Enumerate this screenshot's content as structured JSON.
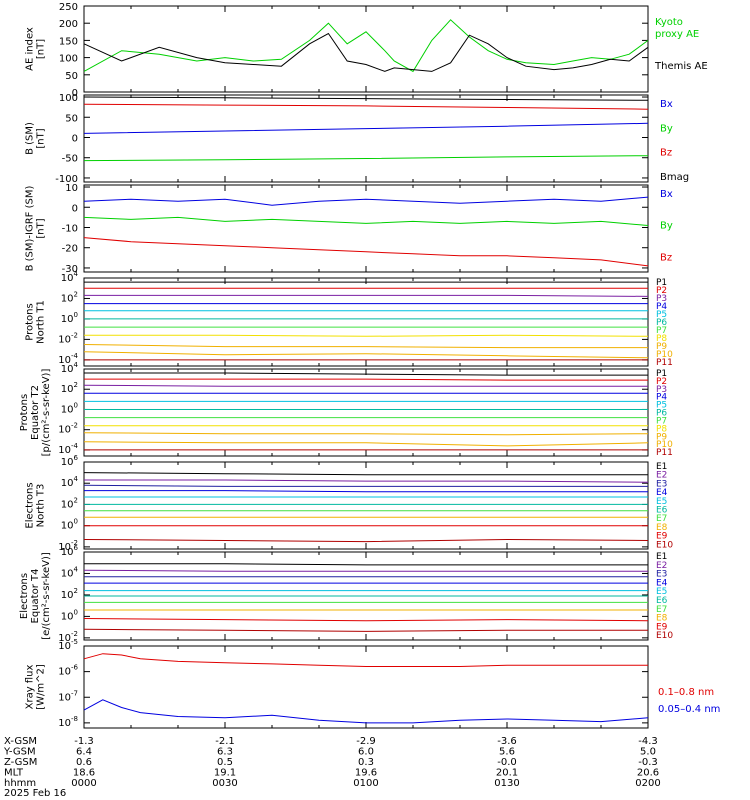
{
  "colors": {
    "black": "#000000",
    "red": "#e00000",
    "blue": "#0000e0",
    "green": "#00d000",
    "purple": "#7a1fa2",
    "cyan": "#00c0e0",
    "teal": "#00b8a0",
    "lgreen": "#40e040",
    "yellow": "#f2e000",
    "orange": "#f0b000",
    "darkred": "#b00000",
    "navy": "#2020a0",
    "lime": "#60d000"
  },
  "footer": {
    "rows": [
      {
        "label": "X-GSM",
        "values": [
          "-1.3",
          "-2.1",
          "-2.9",
          "-3.6",
          "-4.3"
        ]
      },
      {
        "label": "Y-GSM",
        "values": [
          "6.4",
          "6.3",
          "6.0",
          "5.6",
          "5.0"
        ]
      },
      {
        "label": "Z-GSM",
        "values": [
          "0.6",
          "0.5",
          "0.3",
          "-0.0",
          "-0.3"
        ]
      },
      {
        "label": "MLT",
        "values": [
          "18.6",
          "19.1",
          "19.6",
          "20.1",
          "20.6"
        ]
      },
      {
        "label": "hhmm",
        "values": [
          "0000",
          "0030",
          "0100",
          "0130",
          "0200"
        ]
      }
    ],
    "date": "2025 Feb 16"
  },
  "chart_data": [
    {
      "id": "ae",
      "type": "line",
      "ylabel": [
        "AE index",
        "[nT]"
      ],
      "ylim": [
        0,
        250
      ],
      "yticks": [
        0,
        50,
        100,
        150,
        200,
        250
      ],
      "scale": "linear",
      "x": [
        0,
        8,
        16,
        24,
        30,
        36,
        42,
        48,
        52,
        56,
        60,
        64,
        66,
        70,
        74,
        78,
        82,
        86,
        90,
        94,
        100,
        104,
        108,
        112,
        116,
        120
      ],
      "series": [
        {
          "name": "Kyoto proxy AE",
          "label_lines": [
            "Kyoto",
            "proxy AE"
          ],
          "color": "green",
          "values": [
            60,
            120,
            110,
            90,
            100,
            90,
            95,
            150,
            200,
            140,
            175,
            120,
            90,
            60,
            150,
            210,
            160,
            120,
            95,
            85,
            80,
            90,
            100,
            95,
            110,
            150
          ]
        },
        {
          "name": "Themis AE",
          "label_lines": [
            "Themis AE"
          ],
          "color": "black",
          "values": [
            140,
            90,
            130,
            100,
            85,
            80,
            75,
            140,
            170,
            90,
            80,
            60,
            70,
            65,
            60,
            85,
            165,
            140,
            100,
            75,
            65,
            70,
            80,
            95,
            90,
            130
          ]
        }
      ]
    },
    {
      "id": "bsm",
      "type": "line",
      "ylabel": [
        "B (SM)",
        "[nT]"
      ],
      "ylim": [
        -110,
        105
      ],
      "yticks": [
        -100,
        -50,
        0,
        50,
        100
      ],
      "scale": "linear",
      "x": [
        0,
        30,
        60,
        90,
        120
      ],
      "series": [
        {
          "name": "Bx",
          "color": "blue",
          "values": [
            10,
            16,
            22,
            28,
            35
          ]
        },
        {
          "name": "By",
          "color": "green",
          "values": [
            -57,
            -55,
            -52,
            -48,
            -45
          ]
        },
        {
          "name": "Bz",
          "color": "red",
          "values": [
            82,
            80,
            78,
            74,
            70
          ]
        },
        {
          "name": "Bmag",
          "color": "black",
          "values": [
            100,
            98,
            96,
            94,
            92
          ]
        }
      ]
    },
    {
      "id": "bigrf",
      "type": "line",
      "ylabel": [
        "B (SM)-IGRF (SM)",
        "[nT]"
      ],
      "ylim": [
        -32,
        11
      ],
      "yticks": [
        -30,
        -20,
        -10,
        0,
        10
      ],
      "scale": "linear",
      "x": [
        0,
        10,
        20,
        30,
        40,
        50,
        60,
        70,
        80,
        90,
        100,
        110,
        120
      ],
      "series": [
        {
          "name": "Bx",
          "color": "blue",
          "values": [
            3,
            4,
            3,
            4,
            1,
            3,
            4,
            3,
            2,
            3,
            4,
            3,
            5
          ]
        },
        {
          "name": "By",
          "color": "green",
          "values": [
            -5,
            -6,
            -5,
            -7,
            -6,
            -7,
            -8,
            -7,
            -8,
            -7,
            -8,
            -7,
            -9
          ]
        },
        {
          "name": "Bz",
          "color": "red",
          "values": [
            -15,
            -17,
            -18,
            -19,
            -20,
            -21,
            -22,
            -23,
            -24,
            -24,
            -25,
            -26,
            -29
          ]
        }
      ]
    },
    {
      "id": "pn1",
      "type": "line",
      "ylabel": [
        "Protons",
        "North T1"
      ],
      "scale": "log",
      "ylim_log": [
        -4.6,
        4
      ],
      "ytick_exp": [
        4,
        2,
        0,
        -2,
        -4
      ],
      "x": [
        0,
        30,
        60,
        90,
        120
      ],
      "series": [
        {
          "name": "P1",
          "color": "black",
          "values": [
            3.6,
            3.6,
            3.6,
            3.6,
            3.6
          ]
        },
        {
          "name": "P2",
          "color": "red",
          "values": [
            3.0,
            3.0,
            3.0,
            3.0,
            3.0
          ]
        },
        {
          "name": "P3",
          "color": "purple",
          "values": [
            2.3,
            2.3,
            2.3,
            2.3,
            2.2
          ]
        },
        {
          "name": "P4",
          "color": "blue",
          "values": [
            1.5,
            1.5,
            1.5,
            1.5,
            1.5
          ]
        },
        {
          "name": "P5",
          "color": "cyan",
          "values": [
            0.8,
            0.8,
            0.8,
            0.8,
            0.8
          ]
        },
        {
          "name": "P6",
          "color": "teal",
          "values": [
            0.0,
            0.0,
            0.0,
            0.0,
            0.0
          ]
        },
        {
          "name": "P7",
          "color": "lgreen",
          "values": [
            -0.8,
            -0.8,
            -0.8,
            -0.8,
            -0.8
          ]
        },
        {
          "name": "P8",
          "color": "yellow",
          "values": [
            -1.6,
            -1.6,
            -1.7,
            -1.6,
            -1.7
          ]
        },
        {
          "name": "P9",
          "color": "orange",
          "values": [
            -2.5,
            -2.7,
            -2.7,
            -2.8,
            -2.8
          ]
        },
        {
          "name": "P10",
          "color": "orange",
          "values": [
            -3.2,
            -3.5,
            -3.4,
            -3.6,
            -3.8
          ]
        },
        {
          "name": "P11",
          "color": "darkred",
          "values": [
            -4.0,
            -4.0,
            -4.0,
            -4.0,
            -4.0
          ]
        }
      ]
    },
    {
      "id": "pe2",
      "type": "line",
      "ylabel": [
        "Protons",
        "Equator T2",
        "[p/(cm²-s-sr-keV)]"
      ],
      "scale": "log",
      "ylim_log": [
        -4.6,
        4
      ],
      "ytick_exp": [
        4,
        2,
        0,
        -2,
        -4
      ],
      "x": [
        0,
        30,
        60,
        90,
        120
      ],
      "series": [
        {
          "name": "P1",
          "color": "black",
          "values": [
            3.6,
            3.6,
            3.5,
            3.4,
            3.4
          ]
        },
        {
          "name": "P2",
          "color": "red",
          "values": [
            3.0,
            3.0,
            3.0,
            2.9,
            2.9
          ]
        },
        {
          "name": "P3",
          "color": "purple",
          "values": [
            2.4,
            2.3,
            2.3,
            2.3,
            2.3
          ]
        },
        {
          "name": "P4",
          "color": "blue",
          "values": [
            1.6,
            1.6,
            1.6,
            1.6,
            1.6
          ]
        },
        {
          "name": "P5",
          "color": "cyan",
          "values": [
            0.8,
            0.8,
            0.8,
            0.8,
            0.8
          ]
        },
        {
          "name": "P6",
          "color": "teal",
          "values": [
            0.0,
            0.0,
            0.0,
            0.0,
            0.0
          ]
        },
        {
          "name": "P7",
          "color": "lgreen",
          "values": [
            -0.8,
            -0.8,
            -0.8,
            -0.8,
            -0.8
          ]
        },
        {
          "name": "P8",
          "color": "yellow",
          "values": [
            -1.6,
            -1.6,
            -1.6,
            -1.6,
            -1.6
          ]
        },
        {
          "name": "P9",
          "color": "orange",
          "values": [
            -2.3,
            -2.4,
            -2.4,
            -2.5,
            -2.4
          ]
        },
        {
          "name": "P10",
          "color": "orange",
          "values": [
            -3.2,
            -3.3,
            -3.3,
            -3.6,
            -3.3
          ]
        },
        {
          "name": "P11",
          "color": "darkred",
          "values": [
            -4.0,
            -4.0,
            -4.0,
            -4.0,
            -4.0
          ]
        }
      ]
    },
    {
      "id": "en3",
      "type": "line",
      "ylabel": [
        "Electrons",
        "North T3"
      ],
      "scale": "log",
      "ylim_log": [
        -2.2,
        6
      ],
      "ytick_exp": [
        6,
        4,
        2,
        0,
        -2
      ],
      "x": [
        0,
        30,
        60,
        90,
        120
      ],
      "series": [
        {
          "name": "E1",
          "color": "black",
          "values": [
            5.0,
            4.9,
            4.8,
            4.8,
            4.8
          ]
        },
        {
          "name": "E2",
          "color": "purple",
          "values": [
            4.3,
            4.3,
            4.2,
            4.2,
            4.1
          ]
        },
        {
          "name": "E3",
          "color": "navy",
          "values": [
            3.8,
            3.7,
            3.7,
            3.7,
            3.7
          ]
        },
        {
          "name": "E4",
          "color": "blue",
          "values": [
            3.3,
            3.3,
            3.2,
            3.2,
            3.2
          ]
        },
        {
          "name": "E5",
          "color": "cyan",
          "values": [
            2.7,
            2.7,
            2.7,
            2.7,
            2.7
          ]
        },
        {
          "name": "E6",
          "color": "teal",
          "values": [
            2.0,
            2.0,
            2.0,
            2.0,
            2.0
          ]
        },
        {
          "name": "E7",
          "color": "lgreen",
          "values": [
            1.4,
            1.4,
            1.4,
            1.4,
            1.4
          ]
        },
        {
          "name": "E8",
          "color": "orange",
          "values": [
            0.8,
            0.8,
            0.8,
            0.8,
            0.8
          ]
        },
        {
          "name": "E9",
          "color": "red",
          "values": [
            0.0,
            0.0,
            0.0,
            0.0,
            0.0
          ]
        },
        {
          "name": "E10",
          "color": "darkred",
          "values": [
            -1.3,
            -1.4,
            -1.5,
            -1.3,
            -1.4
          ]
        }
      ]
    },
    {
      "id": "ee4",
      "type": "line",
      "ylabel": [
        "Electrons",
        "Equator T4",
        "[e/(cm²-s-sr-keV)]"
      ],
      "scale": "log",
      "ylim_log": [
        -2.2,
        6
      ],
      "ytick_exp": [
        6,
        4,
        2,
        0,
        -2
      ],
      "x": [
        0,
        30,
        60,
        90,
        120
      ],
      "series": [
        {
          "name": "E1",
          "color": "black",
          "values": [
            4.9,
            4.9,
            4.8,
            4.8,
            4.8
          ]
        },
        {
          "name": "E2",
          "color": "purple",
          "values": [
            4.3,
            4.2,
            4.2,
            4.2,
            4.2
          ]
        },
        {
          "name": "E3",
          "color": "navy",
          "values": [
            3.7,
            3.7,
            3.7,
            3.7,
            3.7
          ]
        },
        {
          "name": "E4",
          "color": "blue",
          "values": [
            3.1,
            3.1,
            3.1,
            3.1,
            3.1
          ]
        },
        {
          "name": "E5",
          "color": "cyan",
          "values": [
            2.4,
            2.4,
            2.4,
            2.4,
            2.4
          ]
        },
        {
          "name": "E6",
          "color": "teal",
          "values": [
            1.9,
            1.9,
            1.9,
            1.9,
            1.9
          ]
        },
        {
          "name": "E7",
          "color": "lgreen",
          "values": [
            1.3,
            1.3,
            1.3,
            1.3,
            1.3
          ]
        },
        {
          "name": "E8",
          "color": "orange",
          "values": [
            0.6,
            0.6,
            0.6,
            0.6,
            0.6
          ]
        },
        {
          "name": "E9",
          "color": "red",
          "values": [
            -0.2,
            -0.3,
            -0.4,
            -0.3,
            -0.4
          ]
        },
        {
          "name": "E10",
          "color": "darkred",
          "values": [
            -1.2,
            -1.3,
            -1.4,
            -1.3,
            -1.3
          ]
        }
      ]
    },
    {
      "id": "xray",
      "type": "line",
      "ylabel": [
        "Xray flux",
        "[W/m^2]"
      ],
      "scale": "log",
      "ylim_log": [
        -8.2,
        -5
      ],
      "ytick_exp": [
        -5,
        -6,
        -7,
        -8
      ],
      "x": [
        0,
        4,
        8,
        12,
        20,
        30,
        40,
        50,
        60,
        70,
        80,
        90,
        100,
        110,
        120
      ],
      "series": [
        {
          "name": "0.1-0.8 nm",
          "color": "red",
          "values": [
            -5.5,
            -5.3,
            -5.35,
            -5.5,
            -5.6,
            -5.65,
            -5.7,
            -5.75,
            -5.8,
            -5.8,
            -5.8,
            -5.75,
            -5.75,
            -5.75,
            -5.75
          ]
        },
        {
          "name": "0.05-0.4 nm",
          "color": "blue",
          "values": [
            -7.5,
            -7.1,
            -7.4,
            -7.6,
            -7.75,
            -7.8,
            -7.7,
            -7.9,
            -8.0,
            -8.0,
            -7.9,
            -7.85,
            -7.9,
            -7.95,
            -7.8
          ]
        }
      ]
    }
  ]
}
